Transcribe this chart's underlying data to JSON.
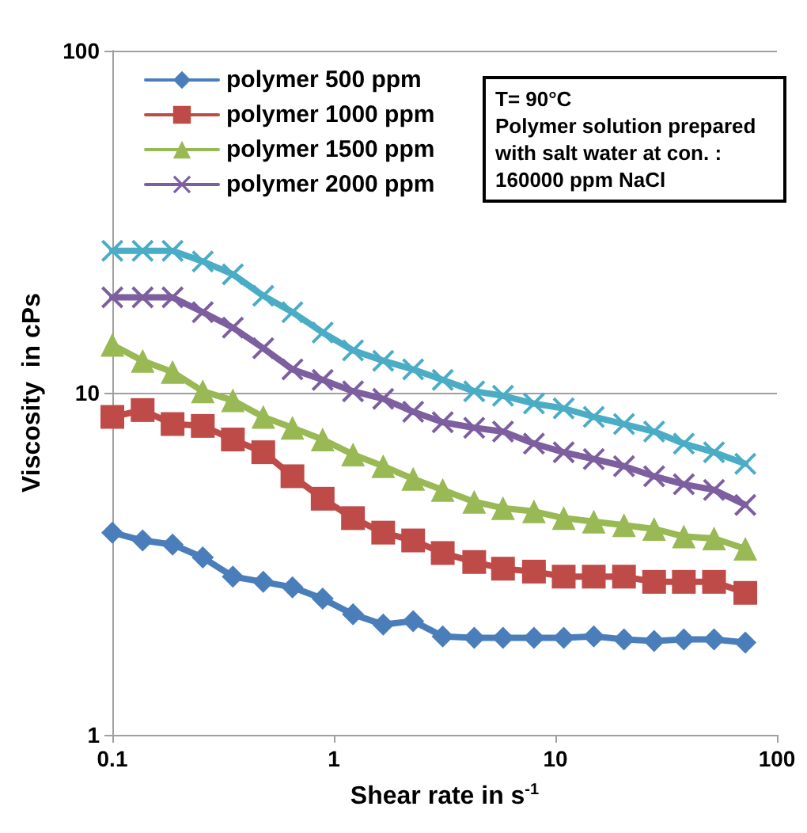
{
  "chart_data": {
    "type": "line",
    "xlabel": "Shear rate in s$^{-1}$",
    "ylabel": "Viscosity  in cPs",
    "x": [
      0.1,
      0.137,
      0.187,
      0.256,
      0.35,
      0.48,
      0.65,
      0.89,
      1.22,
      1.67,
      2.28,
      3.1,
      4.3,
      5.8,
      8.0,
      10.9,
      14.9,
      20.4,
      27.9,
      38,
      52,
      72
    ],
    "series": [
      {
        "name": "polymer 500 ppm",
        "color": "#4a7ebb",
        "marker": "diamond",
        "values": [
          3.9,
          3.7,
          3.6,
          3.3,
          2.9,
          2.8,
          2.7,
          2.5,
          2.25,
          2.1,
          2.15,
          1.94,
          1.92,
          1.92,
          1.92,
          1.92,
          1.94,
          1.9,
          1.88,
          1.9,
          1.9,
          1.86
        ]
      },
      {
        "name": "polymer 1000 ppm",
        "color": "#be4b48",
        "marker": "square",
        "values": [
          8.5,
          8.9,
          8.1,
          8.0,
          7.3,
          6.7,
          5.7,
          4.9,
          4.3,
          3.9,
          3.7,
          3.4,
          3.2,
          3.06,
          3.0,
          2.9,
          2.9,
          2.9,
          2.8,
          2.8,
          2.8,
          2.6
        ]
      },
      {
        "name": "polymer 1500 ppm",
        "color": "#98b954",
        "marker": "triangle",
        "values": [
          13.8,
          12.4,
          11.5,
          10.1,
          9.5,
          8.5,
          7.9,
          7.3,
          6.6,
          6.1,
          5.6,
          5.2,
          4.8,
          4.6,
          4.5,
          4.3,
          4.2,
          4.1,
          4.0,
          3.8,
          3.75,
          3.5
        ]
      },
      {
        "name": "polymer 2000 ppm",
        "color": "#7d5fa0",
        "marker": "cross",
        "values": [
          19,
          19,
          19,
          17.2,
          15.5,
          13.5,
          11.7,
          10.9,
          10.1,
          9.6,
          8.8,
          8.2,
          7.9,
          7.7,
          7.1,
          6.7,
          6.4,
          6.1,
          5.7,
          5.4,
          5.2,
          4.7
        ]
      },
      {
        "color": "#4bacc6",
        "marker": "cross",
        "values": [
          26,
          26,
          26,
          24.2,
          22.2,
          19.2,
          17.2,
          15.0,
          13.3,
          12.4,
          11.7,
          10.9,
          10.1,
          9.8,
          9.3,
          9.0,
          8.5,
          8.1,
          7.7,
          7.1,
          6.7,
          6.2
        ]
      }
    ],
    "xlim": [
      0.1,
      100
    ],
    "xticks": [
      0.1,
      1,
      10,
      100
    ],
    "ylim": [
      1,
      100
    ],
    "yticks": [
      1,
      10,
      100
    ],
    "log": "xy",
    "grid": "y",
    "legend": "top left",
    "annotations": [
      "T= 90°C",
      "Polymer solution prepared with salt water at con. : 160000 ppm NaCl"
    ]
  }
}
